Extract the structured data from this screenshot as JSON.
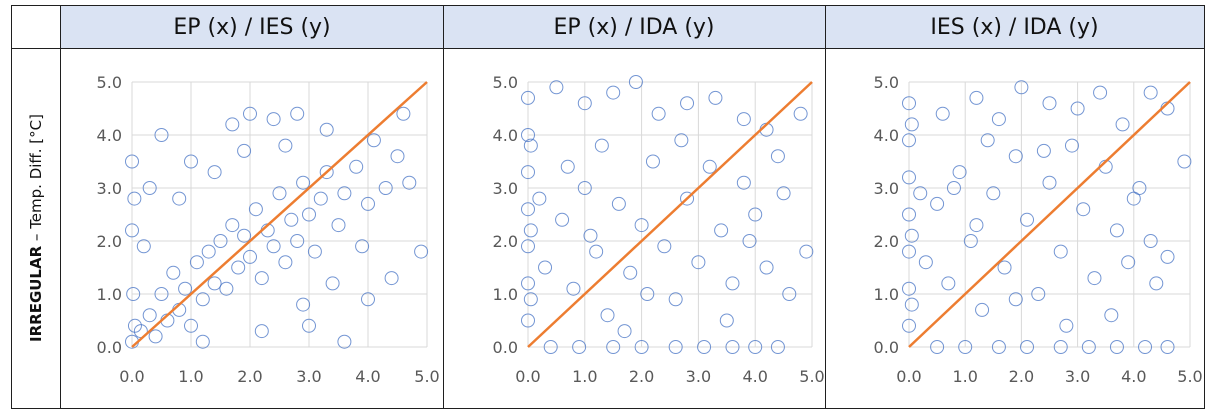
{
  "table": {
    "row_label_bold": "IRREGULAR",
    "row_label_rest": " – Temp. Diff. [°C]"
  },
  "style": {
    "point_color": "#4472c4",
    "line_color": "#ed7d31",
    "header_bg": "#dae3f3",
    "grid_color": "#d9d9d9"
  },
  "chart_data": [
    {
      "type": "scatter",
      "title": "EP (x) / IES (y)",
      "xlim": [
        0,
        5
      ],
      "ylim": [
        0,
        5
      ],
      "x_ticks": [
        "0.0",
        "1.0",
        "2.0",
        "3.0",
        "4.0",
        "5.0"
      ],
      "y_ticks": [
        "0.0",
        "1.0",
        "2.0",
        "3.0",
        "4.0",
        "5.0"
      ],
      "grid": true,
      "reference_line": [
        [
          0,
          0
        ],
        [
          5,
          5
        ]
      ],
      "series": [
        {
          "points": [
            [
              0.0,
              0.1
            ],
            [
              0.05,
              0.4
            ],
            [
              0.02,
              1.0
            ],
            [
              0.0,
              2.2
            ],
            [
              0.04,
              2.8
            ],
            [
              0.0,
              3.5
            ],
            [
              0.15,
              0.3
            ],
            [
              0.3,
              0.6
            ],
            [
              0.4,
              0.2
            ],
            [
              0.5,
              1.0
            ],
            [
              0.6,
              0.5
            ],
            [
              0.7,
              1.4
            ],
            [
              0.8,
              0.7
            ],
            [
              0.9,
              1.1
            ],
            [
              1.0,
              0.4
            ],
            [
              1.1,
              1.6
            ],
            [
              1.2,
              0.9
            ],
            [
              1.3,
              1.8
            ],
            [
              1.4,
              1.2
            ],
            [
              1.5,
              2.0
            ],
            [
              1.6,
              1.1
            ],
            [
              1.7,
              2.3
            ],
            [
              1.8,
              1.5
            ],
            [
              1.9,
              2.1
            ],
            [
              2.0,
              1.7
            ],
            [
              2.1,
              2.6
            ],
            [
              2.2,
              1.3
            ],
            [
              2.3,
              2.2
            ],
            [
              2.4,
              1.9
            ],
            [
              2.5,
              2.9
            ],
            [
              2.6,
              1.6
            ],
            [
              2.7,
              2.4
            ],
            [
              2.8,
              2.0
            ],
            [
              2.9,
              3.1
            ],
            [
              3.0,
              2.5
            ],
            [
              3.1,
              1.8
            ],
            [
              3.2,
              2.8
            ],
            [
              3.3,
              3.3
            ],
            [
              3.5,
              2.3
            ],
            [
              3.6,
              2.9
            ],
            [
              3.8,
              3.4
            ],
            [
              4.0,
              2.7
            ],
            [
              4.1,
              3.9
            ],
            [
              4.3,
              3.0
            ],
            [
              4.5,
              3.6
            ],
            [
              4.7,
              3.1
            ],
            [
              4.9,
              1.8
            ],
            [
              0.5,
              4.0
            ],
            [
              1.0,
              3.5
            ],
            [
              1.7,
              4.2
            ],
            [
              2.0,
              4.4
            ],
            [
              2.4,
              4.3
            ],
            [
              2.8,
              4.4
            ],
            [
              3.3,
              4.1
            ],
            [
              0.8,
              2.8
            ],
            [
              1.4,
              3.3
            ],
            [
              2.2,
              0.3
            ],
            [
              3.0,
              0.4
            ],
            [
              3.6,
              0.1
            ],
            [
              4.0,
              0.9
            ],
            [
              4.4,
              1.3
            ],
            [
              3.9,
              1.9
            ],
            [
              1.2,
              0.1
            ],
            [
              0.3,
              3.0
            ],
            [
              1.9,
              3.7
            ],
            [
              2.6,
              3.8
            ],
            [
              4.6,
              4.4
            ],
            [
              3.4,
              1.2
            ],
            [
              2.9,
              0.8
            ],
            [
              0.2,
              1.9
            ]
          ]
        }
      ]
    },
    {
      "type": "scatter",
      "title": "EP (x) / IDA (y)",
      "xlim": [
        0,
        5
      ],
      "ylim": [
        0,
        5
      ],
      "x_ticks": [
        "0.0",
        "1.0",
        "2.0",
        "3.0",
        "4.0",
        "5.0"
      ],
      "y_ticks": [
        "0.0",
        "1.0",
        "2.0",
        "3.0",
        "4.0",
        "5.0"
      ],
      "grid": true,
      "reference_line": [
        [
          0,
          0
        ],
        [
          5,
          5
        ]
      ],
      "series": [
        {
          "points": [
            [
              0.0,
              0.5
            ],
            [
              0.0,
              1.2
            ],
            [
              0.0,
              1.9
            ],
            [
              0.0,
              2.6
            ],
            [
              0.0,
              3.3
            ],
            [
              0.0,
              4.0
            ],
            [
              0.0,
              4.7
            ],
            [
              0.05,
              0.9
            ],
            [
              0.05,
              2.2
            ],
            [
              0.05,
              3.8
            ],
            [
              0.4,
              0.0
            ],
            [
              0.9,
              0.0
            ],
            [
              1.5,
              0.0
            ],
            [
              2.0,
              0.0
            ],
            [
              2.6,
              0.0
            ],
            [
              3.1,
              0.0
            ],
            [
              3.6,
              0.0
            ],
            [
              4.0,
              0.0
            ],
            [
              4.4,
              0.0
            ],
            [
              0.3,
              1.5
            ],
            [
              0.6,
              2.4
            ],
            [
              0.8,
              1.1
            ],
            [
              1.0,
              3.0
            ],
            [
              1.2,
              1.8
            ],
            [
              1.4,
              0.6
            ],
            [
              1.6,
              2.7
            ],
            [
              1.8,
              1.4
            ],
            [
              2.0,
              2.3
            ],
            [
              2.2,
              3.5
            ],
            [
              2.4,
              1.9
            ],
            [
              2.6,
              0.9
            ],
            [
              2.8,
              2.8
            ],
            [
              3.0,
              1.6
            ],
            [
              3.2,
              3.4
            ],
            [
              3.4,
              2.2
            ],
            [
              3.6,
              1.2
            ],
            [
              3.8,
              3.1
            ],
            [
              4.0,
              2.5
            ],
            [
              4.2,
              1.5
            ],
            [
              4.4,
              3.6
            ],
            [
              4.6,
              1.0
            ],
            [
              4.9,
              1.8
            ],
            [
              0.5,
              4.9
            ],
            [
              1.0,
              4.6
            ],
            [
              1.5,
              4.8
            ],
            [
              1.9,
              5.0
            ],
            [
              2.3,
              4.4
            ],
            [
              2.8,
              4.6
            ],
            [
              3.3,
              4.7
            ],
            [
              3.8,
              4.3
            ],
            [
              4.2,
              4.1
            ],
            [
              4.8,
              4.4
            ],
            [
              1.3,
              3.8
            ],
            [
              2.7,
              3.9
            ],
            [
              3.5,
              0.5
            ],
            [
              2.1,
              1.0
            ],
            [
              0.7,
              3.4
            ],
            [
              1.7,
              0.3
            ],
            [
              3.9,
              2.0
            ],
            [
              4.5,
              2.9
            ],
            [
              0.2,
              2.8
            ],
            [
              1.1,
              2.1
            ]
          ]
        }
      ]
    },
    {
      "type": "scatter",
      "title": "IES (x) / IDA (y)",
      "xlim": [
        0,
        5
      ],
      "ylim": [
        0,
        5
      ],
      "x_ticks": [
        "0.0",
        "1.0",
        "2.0",
        "3.0",
        "4.0",
        "5.0"
      ],
      "y_ticks": [
        "0.0",
        "1.0",
        "2.0",
        "3.0",
        "4.0",
        "5.0"
      ],
      "grid": true,
      "reference_line": [
        [
          0,
          0
        ],
        [
          5,
          5
        ]
      ],
      "series": [
        {
          "points": [
            [
              0.0,
              0.4
            ],
            [
              0.0,
              1.1
            ],
            [
              0.0,
              1.8
            ],
            [
              0.0,
              2.5
            ],
            [
              0.0,
              3.2
            ],
            [
              0.0,
              3.9
            ],
            [
              0.0,
              4.6
            ],
            [
              0.05,
              0.8
            ],
            [
              0.05,
              2.1
            ],
            [
              0.05,
              4.2
            ],
            [
              0.5,
              0.0
            ],
            [
              1.0,
              0.0
            ],
            [
              1.6,
              0.0
            ],
            [
              2.1,
              0.0
            ],
            [
              2.7,
              0.0
            ],
            [
              3.2,
              0.0
            ],
            [
              3.7,
              0.0
            ],
            [
              4.2,
              0.0
            ],
            [
              4.6,
              0.0
            ],
            [
              0.3,
              1.6
            ],
            [
              0.5,
              2.7
            ],
            [
              0.7,
              1.2
            ],
            [
              0.9,
              3.3
            ],
            [
              1.1,
              2.0
            ],
            [
              1.3,
              0.7
            ],
            [
              1.5,
              2.9
            ],
            [
              1.7,
              1.5
            ],
            [
              1.9,
              3.6
            ],
            [
              2.1,
              2.4
            ],
            [
              2.3,
              1.0
            ],
            [
              2.5,
              3.1
            ],
            [
              2.7,
              1.8
            ],
            [
              2.9,
              3.8
            ],
            [
              3.1,
              2.6
            ],
            [
              3.3,
              1.3
            ],
            [
              3.5,
              3.4
            ],
            [
              3.7,
              2.2
            ],
            [
              3.9,
              1.6
            ],
            [
              4.1,
              3.0
            ],
            [
              4.3,
              2.0
            ],
            [
              4.6,
              1.7
            ],
            [
              4.9,
              3.5
            ],
            [
              0.6,
              4.4
            ],
            [
              1.2,
              4.7
            ],
            [
              1.6,
              4.3
            ],
            [
              2.0,
              4.9
            ],
            [
              2.5,
              4.6
            ],
            [
              3.0,
              4.5
            ],
            [
              3.4,
              4.8
            ],
            [
              3.8,
              4.2
            ],
            [
              4.3,
              4.8
            ],
            [
              4.6,
              4.5
            ],
            [
              1.4,
              3.9
            ],
            [
              2.4,
              3.7
            ],
            [
              3.6,
              0.6
            ],
            [
              1.9,
              0.9
            ],
            [
              0.8,
              3.0
            ],
            [
              2.8,
              0.4
            ],
            [
              4.0,
              2.8
            ],
            [
              4.4,
              1.2
            ],
            [
              0.2,
              2.9
            ],
            [
              1.2,
              2.3
            ]
          ]
        }
      ]
    }
  ]
}
